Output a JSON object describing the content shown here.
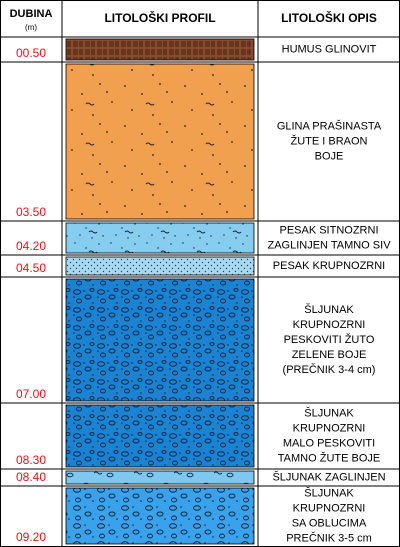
{
  "header": {
    "depth_title": "DUBINA",
    "depth_unit": "(m)",
    "profile_title": "LITOLOŠKI PROFIL",
    "description_title": "LITOLOŠKI OPIS"
  },
  "layers": [
    {
      "depth": "00.50",
      "description": [
        "HUMUS GLINOVIT"
      ]
    },
    {
      "depth": "03.50",
      "description": [
        "GLINA PRAŠINASTA",
        "ŽUTE I BRAON",
        "BOJE"
      ]
    },
    {
      "depth": "04.20",
      "description": [
        "PESAK SITNOZRNI",
        "ZAGLINJEN TAMNO SIV"
      ]
    },
    {
      "depth": "04.50",
      "description": [
        "PESAK KRUPNOZRNI"
      ]
    },
    {
      "depth": "07.00",
      "description": [
        "ŠLJUNAK",
        "KRUPNOZRNI",
        "PESKOVITI ŽUTO",
        "ZELENE BOJE",
        "(PREČNIK 3-4 cm)"
      ]
    },
    {
      "depth": "08.30",
      "description": [
        "ŠLJUNAK",
        "KRUPNOZRNI",
        "MALO PESKOVITI",
        "TAMNO ŽUTE BOJE"
      ]
    },
    {
      "depth": "08.40",
      "description": [
        "ŠLJUNAK ZAGLINJEN"
      ]
    },
    {
      "depth": "09.20",
      "description": [
        "ŠLJUNAK",
        "KRUPNOZRNI",
        "SA OBLUCIMA",
        "PREČNIK 3-5 cm"
      ]
    }
  ]
}
